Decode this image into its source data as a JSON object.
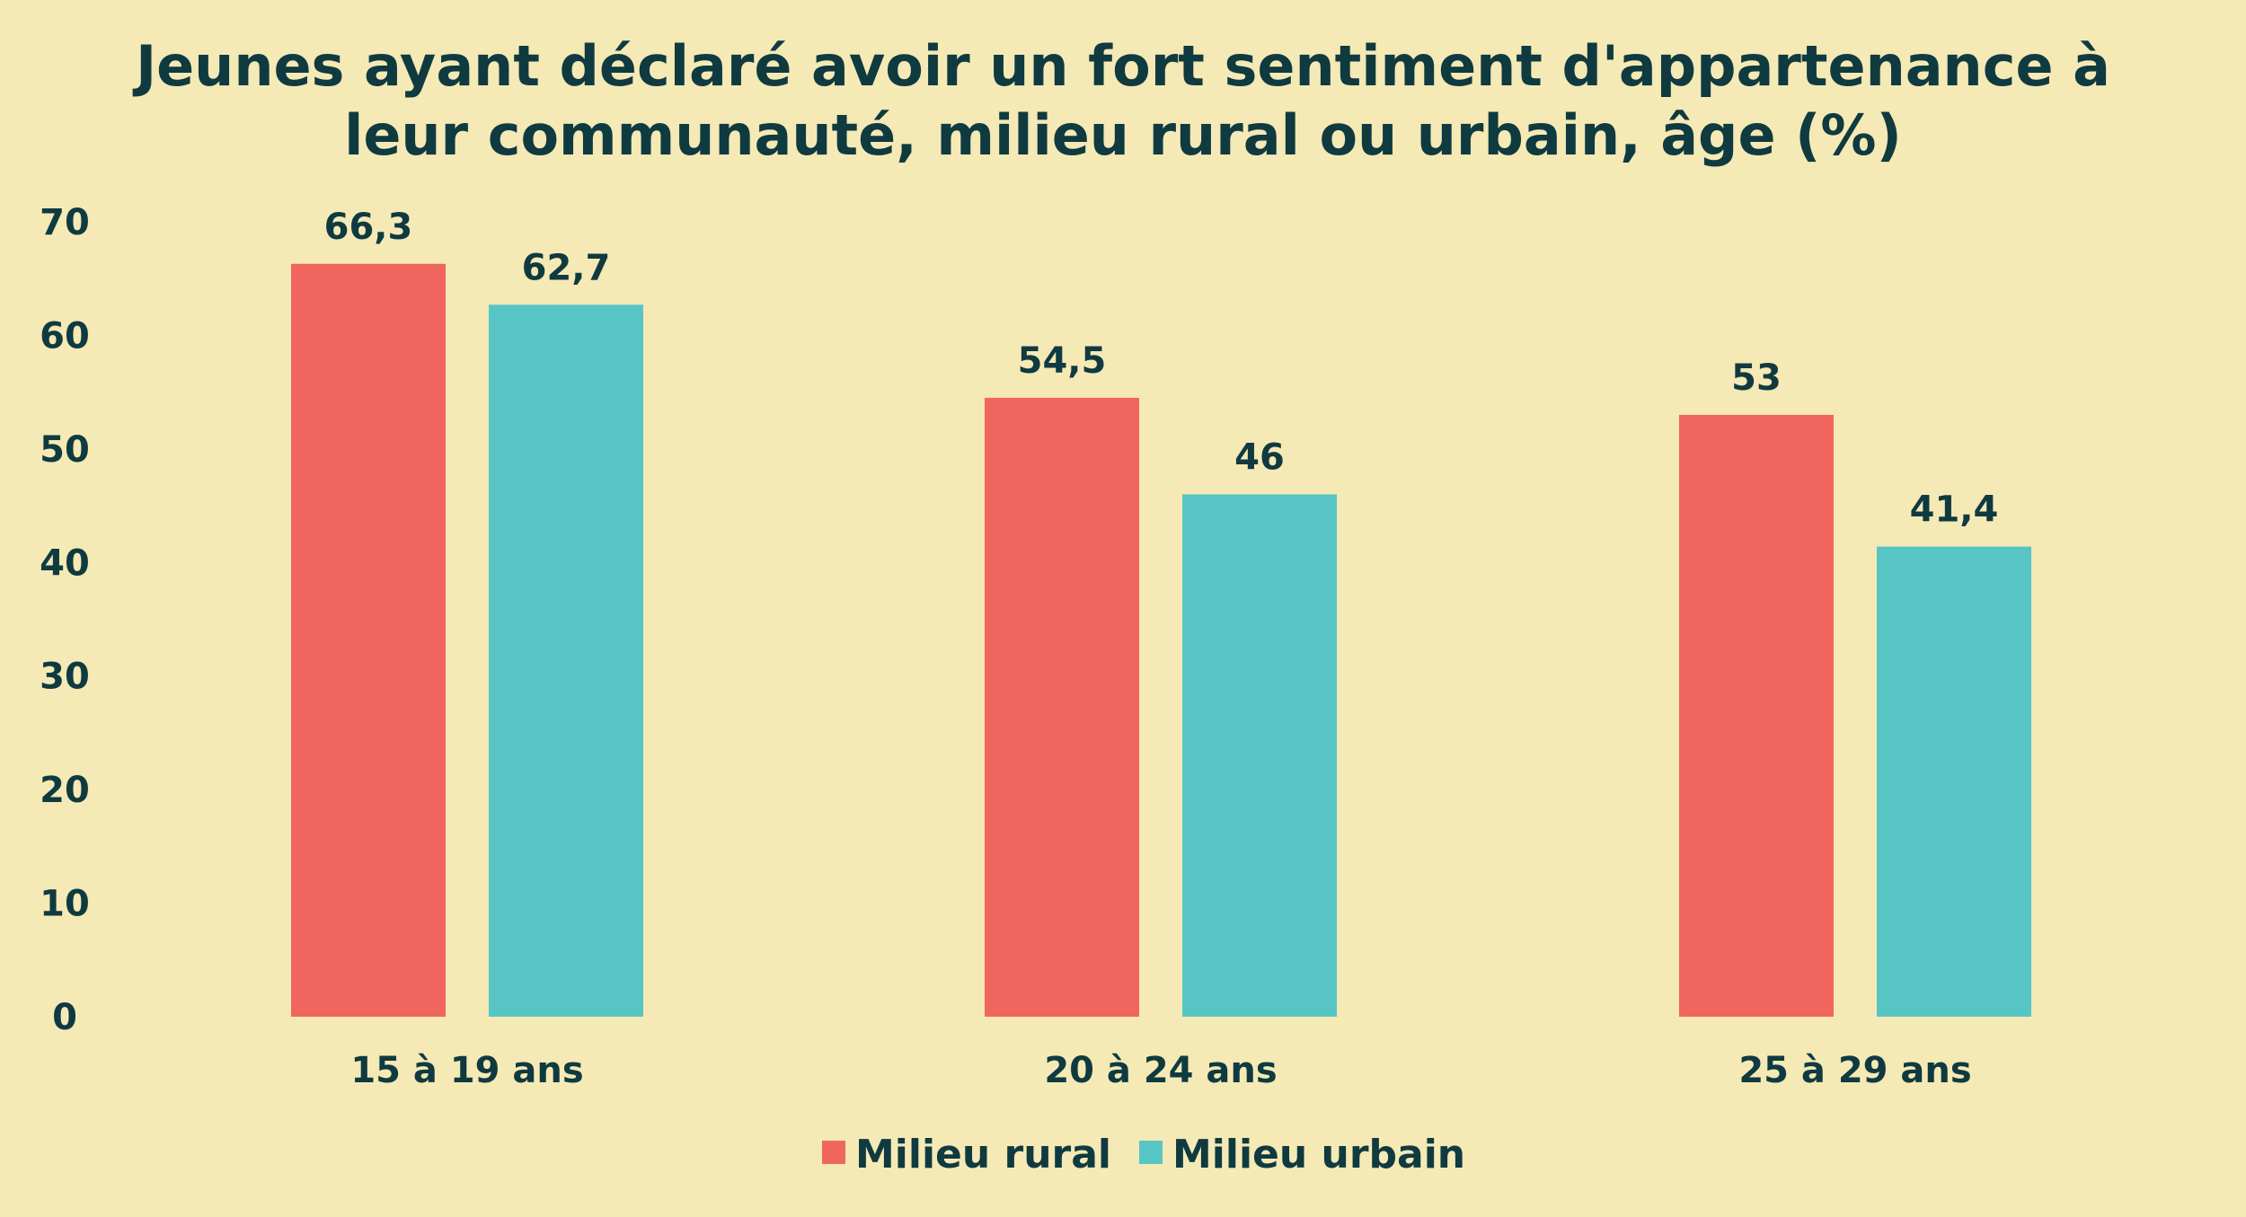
{
  "colors": {
    "background": "#f5e9b6",
    "text": "#0f3a40",
    "rural": "#f0655e",
    "urbain": "#58c5c5"
  },
  "chart_data": {
    "type": "bar",
    "title": "Jeunes ayant déclaré avoir un fort sentiment d'appartenance à leur communauté, milieu rural ou urbain, âge (%)",
    "title_lines": [
      "Jeunes ayant déclaré avoir un fort sentiment d'appartenance à",
      "leur communauté, milieu rural ou urbain, âge (%)"
    ],
    "xlabel": "",
    "ylabel": "",
    "ylim": [
      0,
      70
    ],
    "yticks": [
      0,
      10,
      20,
      30,
      40,
      50,
      60,
      70
    ],
    "grid": false,
    "legend_position": "bottom-center",
    "categories": [
      "15 à 19 ans",
      "20 à 24 ans",
      "25 à 29 ans"
    ],
    "series": [
      {
        "name": "Milieu rural",
        "color_key": "rural",
        "values": [
          66.3,
          54.5,
          53
        ],
        "labels": [
          "66,3",
          "54,5",
          "53"
        ]
      },
      {
        "name": "Milieu urbain",
        "color_key": "urbain",
        "values": [
          62.7,
          46,
          41.4
        ],
        "labels": [
          "62,7",
          "46",
          "41,4"
        ]
      }
    ]
  }
}
